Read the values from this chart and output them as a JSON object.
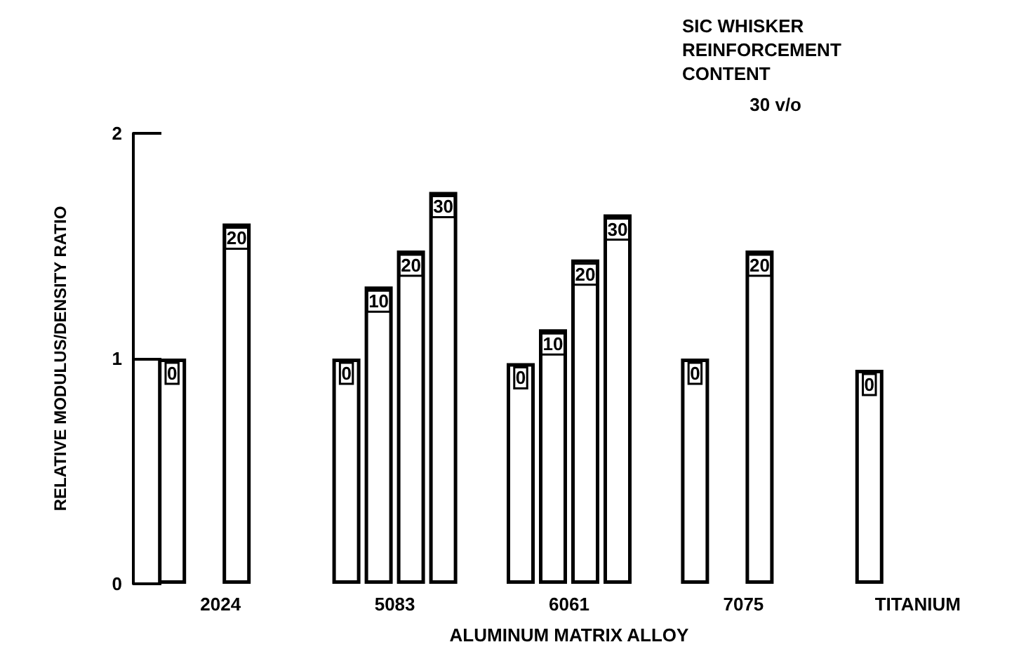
{
  "chart_data": {
    "type": "bar",
    "xlabel": "ALUMINUM MATRIX ALLOY",
    "ylabel": "RELATIVE MODULUS/DENSITY RATIO",
    "legend_title": "SIC WHISKER REINFORCEMENT CONTENT",
    "annotations": [
      "30 v/o"
    ],
    "categories": [
      "2024",
      "5083",
      "6061",
      "7075",
      "TITANIUM"
    ],
    "series": [
      {
        "name": "0",
        "color": "#ffffff",
        "values": [
          1.0,
          1.0,
          0.98,
          1.0,
          0.95
        ]
      },
      {
        "name": "10",
        "color": "#ffffff",
        "values": [
          null,
          1.32,
          1.13,
          null,
          null
        ]
      },
      {
        "name": "20",
        "color": "#ffffff",
        "values": [
          1.6,
          1.48,
          1.44,
          1.48,
          null
        ]
      },
      {
        "name": "30",
        "color": "#ffffff",
        "values": [
          null,
          1.74,
          1.64,
          null,
          null
        ]
      }
    ],
    "ylim": [
      0,
      2
    ],
    "yticks": [
      0,
      1,
      2
    ],
    "grid": false,
    "legend": false
  }
}
